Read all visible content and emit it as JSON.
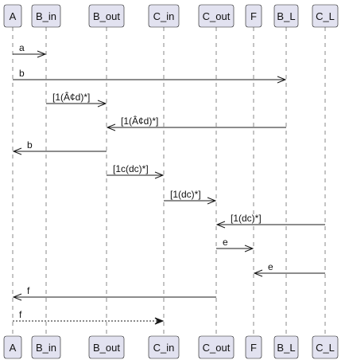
{
  "participants": [
    {
      "id": "A",
      "label": "A"
    },
    {
      "id": "B_in",
      "label": "B_in"
    },
    {
      "id": "B_out",
      "label": "B_out"
    },
    {
      "id": "C_in",
      "label": "C_in"
    },
    {
      "id": "C_out",
      "label": "C_out"
    },
    {
      "id": "F",
      "label": "F"
    },
    {
      "id": "B_L",
      "label": "B_L"
    },
    {
      "id": "C_L",
      "label": "C_L"
    }
  ],
  "messages": [
    {
      "from": "A",
      "to": "B_in",
      "label": "a",
      "style": "solid"
    },
    {
      "from": "A",
      "to": "B_L",
      "label": "b",
      "style": "solid"
    },
    {
      "from": "B_in",
      "to": "B_out",
      "label": "[1(Â¢d)*]",
      "style": "solid"
    },
    {
      "from": "B_L",
      "to": "B_out",
      "label": "[1(Â¢d)*]",
      "style": "solid"
    },
    {
      "from": "B_out",
      "to": "A",
      "label": "b",
      "style": "solid"
    },
    {
      "from": "B_out",
      "to": "C_in",
      "label": "[1c(dc)*]",
      "style": "solid"
    },
    {
      "from": "C_in",
      "to": "C_out",
      "label": "[1(dc)*]",
      "style": "solid"
    },
    {
      "from": "C_L",
      "to": "C_out",
      "label": "[1(dc)*]",
      "style": "solid"
    },
    {
      "from": "C_out",
      "to": "F",
      "label": "e",
      "style": "solid"
    },
    {
      "from": "C_L",
      "to": "F",
      "label": "e",
      "style": "solid"
    },
    {
      "from": "C_out",
      "to": "A",
      "label": "f",
      "style": "solid"
    },
    {
      "from": "A",
      "to": "C_in",
      "label": "f",
      "style": "dashed"
    }
  ]
}
